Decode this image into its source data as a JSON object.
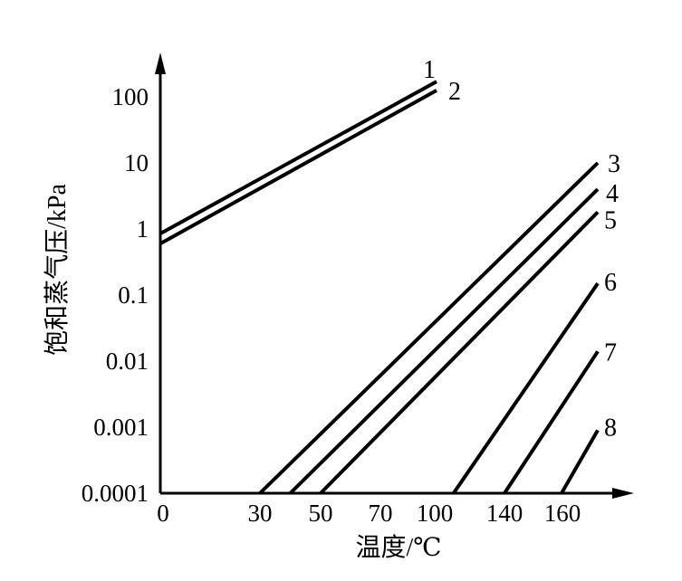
{
  "chart_data": {
    "type": "line",
    "xlabel": "温度/℃",
    "ylabel": "饱和蒸气压/kPa",
    "y_scale": "log",
    "ylim": [
      0.0001,
      300
    ],
    "grid": false,
    "x_ticks": [
      "0",
      "30",
      "50",
      "70",
      "100",
      "140",
      "160"
    ],
    "y_ticks": [
      "0.0001",
      "0.001",
      "0.01",
      "0.1",
      "1",
      "10",
      "100"
    ],
    "series": [
      {
        "name": "1",
        "points": [
          [
            0,
            0.85
          ],
          [
            100,
            170
          ]
        ]
      },
      {
        "name": "2",
        "points": [
          [
            0,
            0.6
          ],
          [
            100,
            125
          ]
        ]
      },
      {
        "name": "3",
        "points": [
          [
            30,
            0.0001
          ],
          [
            175,
            10
          ]
        ]
      },
      {
        "name": "4",
        "points": [
          [
            40,
            0.0001
          ],
          [
            175,
            4
          ]
        ]
      },
      {
        "name": "5",
        "points": [
          [
            50,
            0.0001
          ],
          [
            175,
            1.8
          ]
        ]
      },
      {
        "name": "6",
        "points": [
          [
            110,
            0.0001
          ],
          [
            175,
            0.15
          ]
        ]
      },
      {
        "name": "7",
        "points": [
          [
            140,
            0.0001
          ],
          [
            175,
            0.014
          ]
        ]
      },
      {
        "name": "8",
        "points": [
          [
            160,
            0.0001
          ],
          [
            175,
            0.0009
          ]
        ]
      }
    ]
  }
}
